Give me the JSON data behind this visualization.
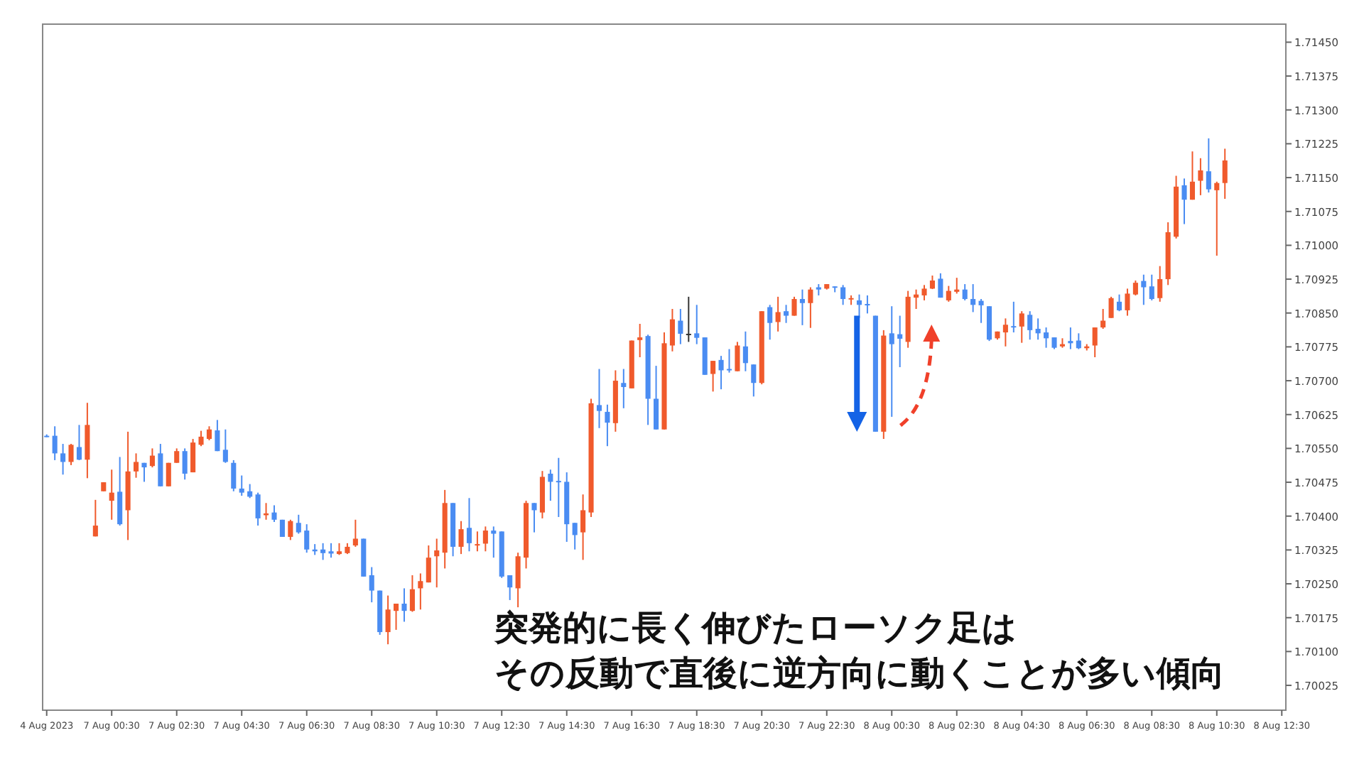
{
  "chart_data": {
    "type": "candlestick",
    "categories": [
      "4 Aug 2023",
      null,
      null,
      null,
      null,
      null,
      null,
      null,
      "7 Aug 00:30",
      null,
      null,
      null,
      null,
      null,
      null,
      null,
      "7 Aug 02:30",
      null,
      null,
      null,
      null,
      null,
      null,
      null,
      "7 Aug 04:30",
      null,
      null,
      null,
      null,
      null,
      null,
      null,
      "7 Aug 06:30",
      null,
      null,
      null,
      null,
      null,
      null,
      null,
      "7 Aug 08:30",
      null,
      null,
      null,
      null,
      null,
      null,
      null,
      "7 Aug 10:30",
      null,
      null,
      null,
      null,
      null,
      null,
      null,
      "7 Aug 12:30",
      null,
      null,
      null,
      null,
      null,
      null,
      null,
      "7 Aug 14:30",
      null,
      null,
      null,
      null,
      null,
      null,
      null,
      "7 Aug 16:30",
      null,
      null,
      null,
      null,
      null,
      null,
      null,
      "7 Aug 18:30",
      null,
      null,
      null,
      null,
      null,
      null,
      null,
      "7 Aug 20:30",
      null,
      null,
      null,
      null,
      null,
      null,
      null,
      "7 Aug 22:30",
      null,
      null,
      null,
      null,
      null,
      null,
      null,
      "8 Aug 00:30",
      null,
      null,
      null,
      null,
      null,
      null,
      null,
      "8 Aug 02:30",
      null,
      null,
      null,
      null,
      null,
      null,
      null,
      "8 Aug 04:30",
      null,
      null,
      null,
      null,
      null,
      null,
      null,
      "8 Aug 06:30",
      null,
      null,
      null,
      null,
      null,
      null,
      null,
      "8 Aug 08:30",
      null,
      null,
      null,
      null,
      null,
      null,
      null,
      "8 Aug 10:30",
      null,
      null,
      null,
      null,
      null,
      null,
      null,
      "8 Aug 12:30"
    ],
    "ohlc": [
      [
        1.70578,
        1.70581,
        1.70575,
        1.70577
      ],
      [
        1.70578,
        1.70599,
        1.70524,
        1.70539
      ],
      [
        1.70539,
        1.7056,
        1.70492,
        1.7052
      ],
      [
        1.7052,
        1.7056,
        1.70513,
        1.70558
      ],
      [
        1.70553,
        1.70602,
        1.70524,
        1.70525
      ],
      [
        1.70525,
        1.70651,
        1.70484,
        1.70602
      ],
      [
        1.70355,
        1.70436,
        1.70355,
        1.70379
      ],
      [
        1.70455,
        1.70475,
        1.70455,
        1.70475
      ],
      [
        1.70434,
        1.70503,
        1.70392,
        1.70452
      ],
      [
        1.70454,
        1.70531,
        1.70379,
        1.70382
      ],
      [
        1.70413,
        1.70587,
        1.70347,
        1.70499
      ],
      [
        1.70499,
        1.70539,
        1.70485,
        1.7052
      ],
      [
        1.70518,
        1.70518,
        1.70476,
        1.70508
      ],
      [
        1.70511,
        1.7055,
        1.70508,
        1.70534
      ],
      [
        1.70539,
        1.7056,
        1.70466,
        1.70466
      ],
      [
        1.70466,
        1.70518,
        1.70466,
        1.70518
      ],
      [
        1.70518,
        1.7055,
        1.70518,
        1.70544
      ],
      [
        1.70544,
        1.7055,
        1.70481,
        1.70494
      ],
      [
        1.70497,
        1.70571,
        1.70497,
        1.70563
      ],
      [
        1.70558,
        1.70589,
        1.70555,
        1.70576
      ],
      [
        1.70571,
        1.70599,
        1.70568,
        1.70592
      ],
      [
        1.7059,
        1.70613,
        1.70544,
        1.70544
      ],
      [
        1.70547,
        1.70592,
        1.70518,
        1.7052
      ],
      [
        1.70518,
        1.70524,
        1.70455,
        1.70461
      ],
      [
        1.70461,
        1.7049,
        1.70445,
        1.70452
      ],
      [
        1.70455,
        1.70471,
        1.7044,
        1.70443
      ],
      [
        1.70448,
        1.70452,
        1.70379,
        1.70395
      ],
      [
        1.70402,
        1.70429,
        1.70392,
        1.70406
      ],
      [
        1.70408,
        1.70424,
        1.70387,
        1.70392
      ],
      [
        1.70392,
        1.70392,
        1.70354,
        1.70354
      ],
      [
        1.70354,
        1.70392,
        1.70347,
        1.70389
      ],
      [
        1.70385,
        1.70403,
        1.70361,
        1.70364
      ],
      [
        1.70368,
        1.70382,
        1.70319,
        1.70326
      ],
      [
        1.70326,
        1.70338,
        1.70314,
        1.70322
      ],
      [
        1.70326,
        1.7034,
        1.70303,
        1.70318
      ],
      [
        1.70322,
        1.7034,
        1.70308,
        1.70317
      ],
      [
        1.70316,
        1.7034,
        1.70314,
        1.70322
      ],
      [
        1.70318,
        1.7034,
        1.70316,
        1.70332
      ],
      [
        1.70335,
        1.70392,
        1.70332,
        1.7035
      ],
      [
        1.7035,
        1.7035,
        1.70266,
        1.70266
      ],
      [
        1.70269,
        1.70287,
        1.70209,
        1.70235
      ],
      [
        1.70235,
        1.70235,
        1.70137,
        1.70143
      ],
      [
        1.70143,
        1.70224,
        1.70116,
        1.70193
      ],
      [
        1.7019,
        1.70206,
        1.70148,
        1.70206
      ],
      [
        1.70206,
        1.7024,
        1.70166,
        1.7019
      ],
      [
        1.7019,
        1.70269,
        1.70188,
        1.70238
      ],
      [
        1.7024,
        1.70273,
        1.70193,
        1.70256
      ],
      [
        1.70253,
        1.70335,
        1.70253,
        1.70308
      ],
      [
        1.70311,
        1.7035,
        1.70242,
        1.70324
      ],
      [
        1.70319,
        1.70458,
        1.70284,
        1.70429
      ],
      [
        1.70429,
        1.70429,
        1.70311,
        1.70332
      ],
      [
        1.70332,
        1.70389,
        1.70316,
        1.70371
      ],
      [
        1.70374,
        1.7044,
        1.70322,
        1.7034
      ],
      [
        1.70335,
        1.70366,
        1.70322,
        1.70338
      ],
      [
        1.70339,
        1.70377,
        1.70322,
        1.70368
      ],
      [
        1.70368,
        1.70377,
        1.70308,
        1.70361
      ],
      [
        1.70366,
        1.70366,
        1.70263,
        1.70266
      ],
      [
        1.70269,
        1.70269,
        1.70214,
        1.70242
      ],
      [
        1.7024,
        1.70319,
        1.70198,
        1.70311
      ],
      [
        1.70308,
        1.70434,
        1.70284,
        1.70429
      ],
      [
        1.70429,
        1.70429,
        1.70364,
        1.70413
      ],
      [
        1.70408,
        1.705,
        1.70395,
        1.70487
      ],
      [
        1.70494,
        1.70503,
        1.70434,
        1.70476
      ],
      [
        1.70478,
        1.70529,
        1.70398,
        1.70475
      ],
      [
        1.70476,
        1.70497,
        1.70343,
        1.70382
      ],
      [
        1.70385,
        1.70385,
        1.70326,
        1.70358
      ],
      [
        1.70364,
        1.70448,
        1.70303,
        1.70413
      ],
      [
        1.70408,
        1.7066,
        1.70398,
        1.7065
      ],
      [
        1.70646,
        1.70726,
        1.70595,
        1.70633
      ],
      [
        1.70631,
        1.70647,
        1.70555,
        1.70607
      ],
      [
        1.70606,
        1.70723,
        1.70587,
        1.707
      ],
      [
        1.70695,
        1.70726,
        1.70639,
        1.70686
      ],
      [
        1.70683,
        1.70789,
        1.70683,
        1.70789
      ],
      [
        1.7079,
        1.70826,
        1.70752,
        1.70796
      ],
      [
        1.70799,
        1.70802,
        1.70602,
        1.7066
      ],
      [
        1.7066,
        1.70733,
        1.70592,
        1.70592
      ],
      [
        1.70592,
        1.70807,
        1.70592,
        1.70783
      ],
      [
        1.70778,
        1.70859,
        1.70765,
        1.70836
      ],
      [
        1.70833,
        1.70859,
        1.70781,
        1.70804
      ],
      [
        1.70804,
        1.70886,
        1.70786,
        1.70804
      ],
      [
        1.70805,
        1.70868,
        1.70781,
        1.70795
      ],
      [
        1.70796,
        1.70796,
        1.70713,
        1.70713
      ],
      [
        1.70715,
        1.70744,
        1.70676,
        1.70744
      ],
      [
        1.70746,
        1.70755,
        1.70681,
        1.70723
      ],
      [
        1.70726,
        1.7077,
        1.70718,
        1.70723
      ],
      [
        1.70721,
        1.70786,
        1.70721,
        1.70778
      ],
      [
        1.70776,
        1.70809,
        1.70721,
        1.70739
      ],
      [
        1.70736,
        1.70736,
        1.70665,
        1.70695
      ],
      [
        1.70695,
        1.70854,
        1.70692,
        1.70854
      ],
      [
        1.70863,
        1.70868,
        1.70791,
        1.70828
      ],
      [
        1.7083,
        1.70886,
        1.70809,
        1.70852
      ],
      [
        1.70854,
        1.70868,
        1.70828,
        1.70844
      ],
      [
        1.70844,
        1.70886,
        1.70844,
        1.70881
      ],
      [
        1.70881,
        1.70902,
        1.70823,
        1.70872
      ],
      [
        1.70872,
        1.70907,
        1.70817,
        1.70902
      ],
      [
        1.70907,
        1.70914,
        1.70889,
        1.70902
      ],
      [
        1.70904,
        1.70914,
        1.70902,
        1.70914
      ],
      [
        1.70909,
        1.70909,
        1.70896,
        1.70907
      ],
      [
        1.70907,
        1.70912,
        1.70868,
        1.70881
      ],
      [
        1.70881,
        1.70889,
        1.70868,
        1.70883
      ],
      [
        1.70878,
        1.70891,
        1.70839,
        1.70868
      ],
      [
        1.7087,
        1.70889,
        1.70849,
        1.70867
      ],
      [
        1.70844,
        1.70844,
        1.70587,
        1.70587
      ],
      [
        1.70587,
        1.70812,
        1.70571,
        1.708
      ],
      [
        1.70805,
        1.70865,
        1.7062,
        1.70781
      ],
      [
        1.70803,
        1.70844,
        1.7073,
        1.70793
      ],
      [
        1.70786,
        1.70899,
        1.70773,
        1.70886
      ],
      [
        1.70884,
        1.70902,
        1.70859,
        1.70891
      ],
      [
        1.70889,
        1.70912,
        1.70878,
        1.70904
      ],
      [
        1.70904,
        1.70933,
        1.70903,
        1.70922
      ],
      [
        1.70926,
        1.70938,
        1.70884,
        1.70884
      ],
      [
        1.70878,
        1.7091,
        1.70875,
        1.70899
      ],
      [
        1.70897,
        1.70928,
        1.70893,
        1.70902
      ],
      [
        1.70902,
        1.70914,
        1.70878,
        1.70881
      ],
      [
        1.70881,
        1.70914,
        1.70852,
        1.70868
      ],
      [
        1.70877,
        1.70881,
        1.70828,
        1.70867
      ],
      [
        1.70865,
        1.70865,
        1.70788,
        1.70791
      ],
      [
        1.70794,
        1.70809,
        1.70791,
        1.70809
      ],
      [
        1.70807,
        1.70838,
        1.70776,
        1.70824
      ],
      [
        1.70821,
        1.70875,
        1.70807,
        1.70819
      ],
      [
        1.7082,
        1.70854,
        1.70784,
        1.70849
      ],
      [
        1.70846,
        1.70854,
        1.70791,
        1.70812
      ],
      [
        1.70815,
        1.70838,
        1.70791,
        1.70805
      ],
      [
        1.70807,
        1.70818,
        1.70773,
        1.70794
      ],
      [
        1.70796,
        1.70796,
        1.7077,
        1.70773
      ],
      [
        1.70776,
        1.70794,
        1.70773,
        1.70781
      ],
      [
        1.70788,
        1.70818,
        1.7077,
        1.70783
      ],
      [
        1.70789,
        1.70805,
        1.7077,
        1.70772
      ],
      [
        1.70772,
        1.70781,
        1.70767,
        1.70776
      ],
      [
        1.70778,
        1.70818,
        1.70752,
        1.70818
      ],
      [
        1.70818,
        1.70859,
        1.70815,
        1.70833
      ],
      [
        1.70839,
        1.70886,
        1.70839,
        1.70883
      ],
      [
        1.70875,
        1.70891,
        1.70854,
        1.70856
      ],
      [
        1.70856,
        1.70904,
        1.70844,
        1.70893
      ],
      [
        1.70891,
        1.70922,
        1.70889,
        1.70917
      ],
      [
        1.70921,
        1.70935,
        1.70868,
        1.70907
      ],
      [
        1.70909,
        1.70935,
        1.70878,
        1.70881
      ],
      [
        1.70883,
        1.70954,
        1.70875,
        1.70925
      ],
      [
        1.70925,
        1.71051,
        1.70912,
        1.71029
      ],
      [
        1.71019,
        1.71154,
        1.71015,
        1.7113
      ],
      [
        1.71133,
        1.71148,
        1.71047,
        1.71101
      ],
      [
        1.71101,
        1.71208,
        1.71101,
        1.71141
      ],
      [
        1.71143,
        1.71193,
        1.71111,
        1.71166
      ],
      [
        1.71164,
        1.71237,
        1.71117,
        1.71124
      ],
      [
        1.71122,
        1.71141,
        1.70977,
        1.71138
      ],
      [
        1.71138,
        1.71214,
        1.71103,
        1.71188
      ],
      null,
      null,
      null,
      null,
      null,
      null,
      null
    ],
    "colors": [
      "#4a8cf2",
      "#4a8cf2",
      "#4a8cf2",
      "#f05a2c",
      "#4a8cf2",
      "#f05a2c",
      "#f05a2c",
      "#f05a2c",
      "#f05a2c",
      "#4a8cf2",
      "#f05a2c",
      "#f05a2c",
      "#4a8cf2",
      "#f05a2c",
      "#4a8cf2",
      "#f05a2c",
      "#f05a2c",
      "#4a8cf2",
      "#f05a2c",
      "#f05a2c",
      "#f05a2c",
      "#4a8cf2",
      "#4a8cf2",
      "#4a8cf2",
      "#4a8cf2",
      "#4a8cf2",
      "#4a8cf2",
      "#f05a2c",
      "#4a8cf2",
      "#4a8cf2",
      "#f05a2c",
      "#4a8cf2",
      "#4a8cf2",
      "#4a8cf2",
      "#4a8cf2",
      "#4a8cf2",
      "#f05a2c",
      "#f05a2c",
      "#f05a2c",
      "#4a8cf2",
      "#4a8cf2",
      "#4a8cf2",
      "#f05a2c",
      "#f05a2c",
      "#4a8cf2",
      "#f05a2c",
      "#f05a2c",
      "#f05a2c",
      "#f05a2c",
      "#f05a2c",
      "#4a8cf2",
      "#f05a2c",
      "#4a8cf2",
      "#f05a2c",
      "#f05a2c",
      "#4a8cf2",
      "#4a8cf2",
      "#4a8cf2",
      "#f05a2c",
      "#f05a2c",
      "#4a8cf2",
      "#f05a2c",
      "#4a8cf2",
      "#4a8cf2",
      "#4a8cf2",
      "#4a8cf2",
      "#f05a2c",
      "#f05a2c",
      "#4a8cf2",
      "#4a8cf2",
      "#f05a2c",
      "#4a8cf2",
      "#f05a2c",
      "#f05a2c",
      "#4a8cf2",
      "#4a8cf2",
      "#f05a2c",
      "#f05a2c",
      "#4a8cf2",
      "#333333",
      "#4a8cf2",
      "#4a8cf2",
      "#f05a2c",
      "#4a8cf2",
      "#4a8cf2",
      "#f05a2c",
      "#4a8cf2",
      "#4a8cf2",
      "#f05a2c",
      "#4a8cf2",
      "#f05a2c",
      "#4a8cf2",
      "#f05a2c",
      "#4a8cf2",
      "#f05a2c",
      "#4a8cf2",
      "#f05a2c",
      "#4a8cf2",
      "#4a8cf2",
      "#f05a2c",
      "#4a8cf2",
      "#4a8cf2",
      "#4a8cf2",
      "#f05a2c",
      "#4a8cf2",
      "#4a8cf2",
      "#f05a2c",
      "#f05a2c",
      "#f05a2c",
      "#f05a2c",
      "#4a8cf2",
      "#f05a2c",
      "#f05a2c",
      "#4a8cf2",
      "#4a8cf2",
      "#4a8cf2",
      "#4a8cf2",
      "#f05a2c",
      "#f05a2c",
      "#4a8cf2",
      "#f05a2c",
      "#4a8cf2",
      "#4a8cf2",
      "#4a8cf2",
      "#4a8cf2",
      "#f05a2c",
      "#4a8cf2",
      "#4a8cf2",
      "#f05a2c",
      "#f05a2c",
      "#f05a2c",
      "#f05a2c",
      "#4a8cf2",
      "#f05a2c",
      "#f05a2c",
      "#4a8cf2",
      "#4a8cf2",
      "#f05a2c",
      "#f05a2c",
      "#f05a2c",
      "#4a8cf2",
      "#f05a2c",
      "#f05a2c",
      "#4a8cf2",
      "#f05a2c",
      "#f05a2c",
      null,
      null,
      null,
      null,
      null,
      null,
      null
    ],
    "ylim": [
      1.6997,
      1.7149
    ],
    "yticks": [
      {
        "value": 1.7145,
        "label": "1.71450"
      },
      {
        "value": 1.71375,
        "label": "1.71375"
      },
      {
        "value": 1.713,
        "label": "1.71300"
      },
      {
        "value": 1.71225,
        "label": "1.71225"
      },
      {
        "value": 1.7115,
        "label": "1.71150"
      },
      {
        "value": 1.71075,
        "label": "1.71075"
      },
      {
        "value": 1.71,
        "label": "1.71000"
      },
      {
        "value": 1.70925,
        "label": "1.70925"
      },
      {
        "value": 1.7085,
        "label": "1.70850"
      },
      {
        "value": 1.70775,
        "label": "1.70775"
      },
      {
        "value": 1.707,
        "label": "1.70700"
      },
      {
        "value": 1.70625,
        "label": "1.70625"
      },
      {
        "value": 1.7055,
        "label": "1.70550"
      },
      {
        "value": 1.70475,
        "label": "1.70475"
      },
      {
        "value": 1.704,
        "label": "1.70400"
      },
      {
        "value": 1.70325,
        "label": "1.70325"
      },
      {
        "value": 1.7025,
        "label": "1.70250"
      },
      {
        "value": 1.70175,
        "label": "1.70175"
      },
      {
        "value": 1.701,
        "label": "1.70100"
      },
      {
        "value": 1.70025,
        "label": "1.70025"
      }
    ],
    "annotations": [
      "突発的に長く伸びたローソク足は",
      "その反動で直後に逆方向に動くことが多い傾向"
    ]
  }
}
